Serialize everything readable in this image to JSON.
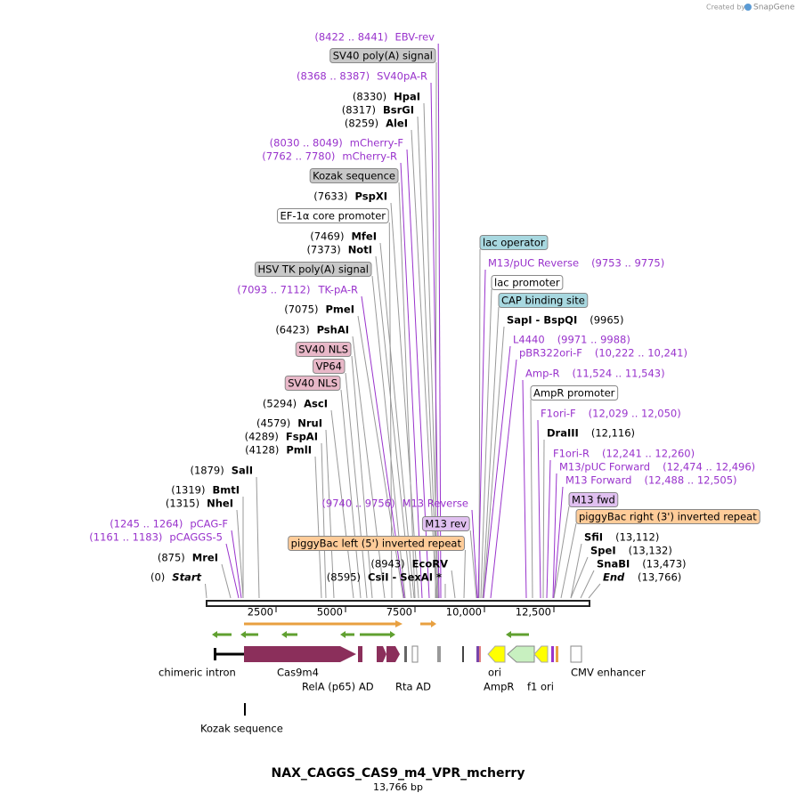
{
  "header": {
    "credit": "Created by",
    "brand": "SnapGene"
  },
  "labels": [
    {
      "name": "EBV-rev",
      "range": "(8422 .. 8441)",
      "color": "#9933cc"
    },
    {
      "name": "SV40 poly(A) signal",
      "color": "#000000",
      "fill": "#c8c8c8"
    },
    {
      "name": "SV40pA-R",
      "range": "(8368 .. 8387)",
      "color": "#9933cc"
    },
    {
      "name": "HpaI",
      "range": "(8330)",
      "color": "#000000"
    },
    {
      "name": "BsrGI",
      "range": "(8317)",
      "color": "#000000"
    },
    {
      "name": "AleI",
      "range": "(8259)",
      "color": "#000000"
    },
    {
      "name": "mCherry-F",
      "range": "(8030 .. 8049)",
      "color": "#9933cc"
    },
    {
      "name": "mCherry-R",
      "range": "(7762 .. 7780)",
      "color": "#9933cc"
    },
    {
      "name": "Kozak sequence",
      "color": "#000000",
      "fill": "#c8c8c8"
    },
    {
      "name": "PspXI",
      "range": "(7633)",
      "color": "#000000"
    },
    {
      "name": "EF-1α core promoter",
      "color": "#000000",
      "fill": "#ffffff"
    },
    {
      "name": "MfeI",
      "range": "(7469)",
      "color": "#000000"
    },
    {
      "name": "NotI",
      "range": "(7373)",
      "color": "#000000"
    },
    {
      "name": "HSV TK poly(A) signal",
      "color": "#000000",
      "fill": "#c8c8c8"
    },
    {
      "name": "TK-pA-R",
      "range": "(7093 .. 7112)",
      "color": "#9933cc"
    },
    {
      "name": "PmeI",
      "range": "(7075)",
      "color": "#000000"
    },
    {
      "name": "PshAI",
      "range": "(6423)",
      "color": "#000000"
    },
    {
      "name": "SV40 NLS",
      "color": "#000000",
      "fill": "#e8b8c8"
    },
    {
      "name": "VP64",
      "color": "#000000",
      "fill": "#e8b8c8"
    },
    {
      "name": "SV40 NLS",
      "color": "#000000",
      "fill": "#e8b8c8"
    },
    {
      "name": "AscI",
      "range": "(5294)",
      "color": "#000000"
    },
    {
      "name": "NruI",
      "range": "(4579)",
      "color": "#000000"
    },
    {
      "name": "FspAI",
      "range": "(4289)",
      "color": "#000000"
    },
    {
      "name": "PmlI",
      "range": "(4128)",
      "color": "#000000"
    },
    {
      "name": "SalI",
      "range": "(1879)",
      "color": "#000000"
    },
    {
      "name": "BmtI",
      "range": "(1319)",
      "color": "#000000"
    },
    {
      "name": "NheI",
      "range": "(1315)",
      "color": "#000000"
    },
    {
      "name": "pCAG-F",
      "range": "(1245 .. 1264)",
      "color": "#9933cc"
    },
    {
      "name": "pCAGGS-5",
      "range": "(1161 .. 1183)",
      "color": "#9933cc"
    },
    {
      "name": "MreI",
      "range": "(875)",
      "color": "#000000"
    },
    {
      "name": "Start",
      "range": "(0)",
      "color": "#000000"
    },
    {
      "name": "M13 Reverse",
      "range": "(9740 .. 9756)",
      "color": "#9933cc"
    },
    {
      "name": "M13 rev",
      "color": "#000000",
      "fill": "#e0c0f0"
    },
    {
      "name": "piggyBac left (5') inverted repeat",
      "color": "#000000",
      "fill": "#ffcc99"
    },
    {
      "name": "EcoRV",
      "range": "(8943)",
      "color": "#000000"
    },
    {
      "name": "CsiI  -  SexAI *",
      "range": "(8595)",
      "color": "#000000"
    },
    {
      "name": "lac operator",
      "color": "#000000",
      "fill": "#a8d8e0"
    },
    {
      "name": "M13/pUC Reverse",
      "range": "(9753 .. 9775)",
      "color": "#9933cc"
    },
    {
      "name": "lac promoter",
      "color": "#000000",
      "fill": "#ffffff"
    },
    {
      "name": "CAP binding site",
      "color": "#000000",
      "fill": "#a8d8e0"
    },
    {
      "name": "SapI  -  BspQI",
      "range": "(9965)",
      "color": "#000000"
    },
    {
      "name": "L4440",
      "range": "(9971 .. 9988)",
      "color": "#9933cc"
    },
    {
      "name": "pBR322ori-F",
      "range": "(10,222 .. 10,241)",
      "color": "#9933cc"
    },
    {
      "name": "Amp-R",
      "range": "(11,524 .. 11,543)",
      "color": "#9933cc"
    },
    {
      "name": "AmpR promoter",
      "color": "#000000",
      "fill": "#ffffff"
    },
    {
      "name": "F1ori-F",
      "range": "(12,029 .. 12,050)",
      "color": "#9933cc"
    },
    {
      "name": "DraIII",
      "range": "(12,116)",
      "color": "#000000"
    },
    {
      "name": "F1ori-R",
      "range": "(12,241 .. 12,260)",
      "color": "#9933cc"
    },
    {
      "name": "M13/pUC Forward",
      "range": "(12,474 .. 12,496)",
      "color": "#9933cc"
    },
    {
      "name": "M13 Forward",
      "range": "(12,488 .. 12,505)",
      "color": "#9933cc"
    },
    {
      "name": "M13 fwd",
      "color": "#000000",
      "fill": "#e0c0f0"
    },
    {
      "name": "piggyBac right (3') inverted repeat",
      "color": "#000000",
      "fill": "#ffcc99"
    },
    {
      "name": "SfiI",
      "range": "(13,112)",
      "color": "#000000"
    },
    {
      "name": "SpeI",
      "range": "(13,132)",
      "color": "#000000"
    },
    {
      "name": "SnaBI",
      "range": "(13,473)",
      "color": "#000000"
    },
    {
      "name": "End",
      "range": "(13,766)",
      "color": "#000000"
    }
  ],
  "ruler": [
    "2500",
    "5000",
    "7500",
    "10,000",
    "12,500"
  ],
  "features": [
    "chimeric intron",
    "Cas9m4",
    "RelA (p65) AD",
    "Rta AD",
    "ori",
    "AmpR",
    "f1 ori",
    "CMV enhancer",
    "Kozak sequence"
  ],
  "title": "NAX_CAGGS_CAS9_m4_VPR_mcherry",
  "length": "13,766 bp"
}
